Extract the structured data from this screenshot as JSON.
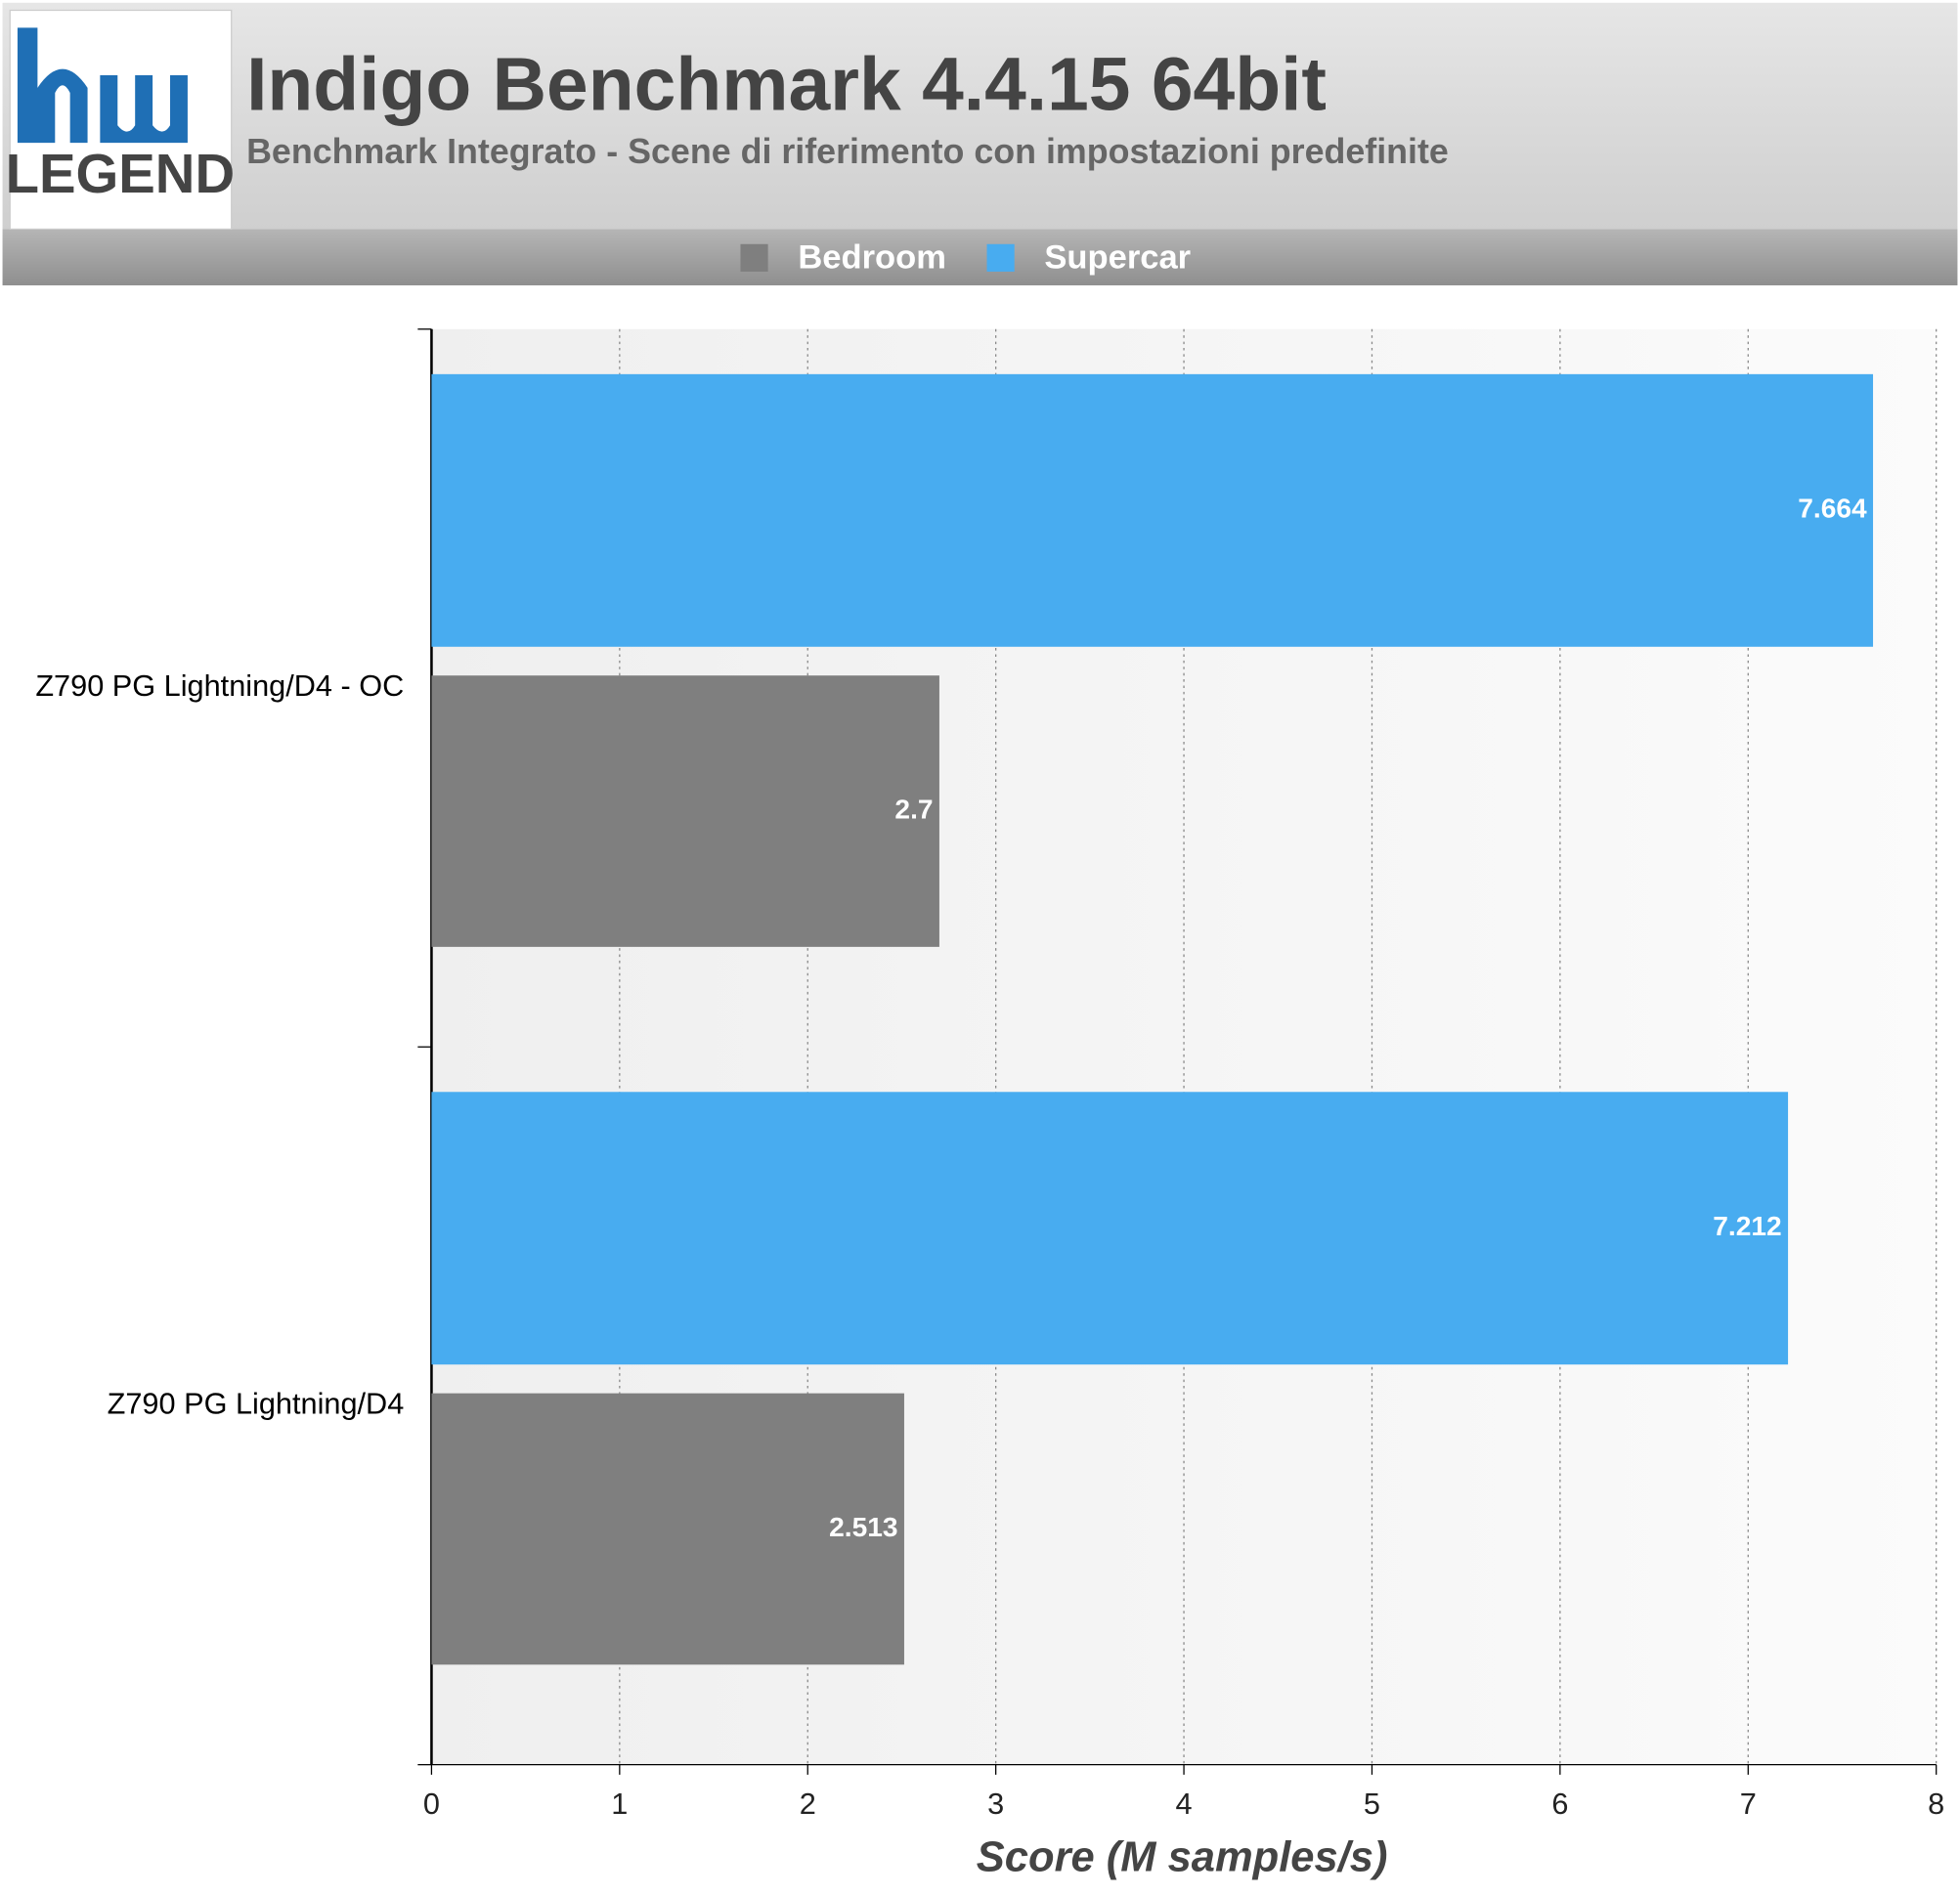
{
  "logo": {
    "text": "LEGEND"
  },
  "chart_data": {
    "type": "bar",
    "orientation": "horizontal",
    "title": "Indigo Benchmark 4.4.15 64bit",
    "subtitle": "Benchmark Integrato - Scene di riferimento con impostazioni predefinite",
    "x_label": "Score (M samples/s)",
    "categories": [
      "Z790 PG Lightning/D4 - OC",
      "Z790 PG Lightning/D4"
    ],
    "series": [
      {
        "name": "Bedroom",
        "color": "#7f7f7f",
        "values": [
          2.7,
          2.513
        ]
      },
      {
        "name": "Supercar",
        "color": "#48acf0",
        "values": [
          7.664,
          7.212
        ]
      }
    ],
    "xlim": [
      0,
      8
    ],
    "xticks": [
      0,
      1,
      2,
      3,
      4,
      5,
      6,
      7,
      8
    ],
    "grid": true
  }
}
